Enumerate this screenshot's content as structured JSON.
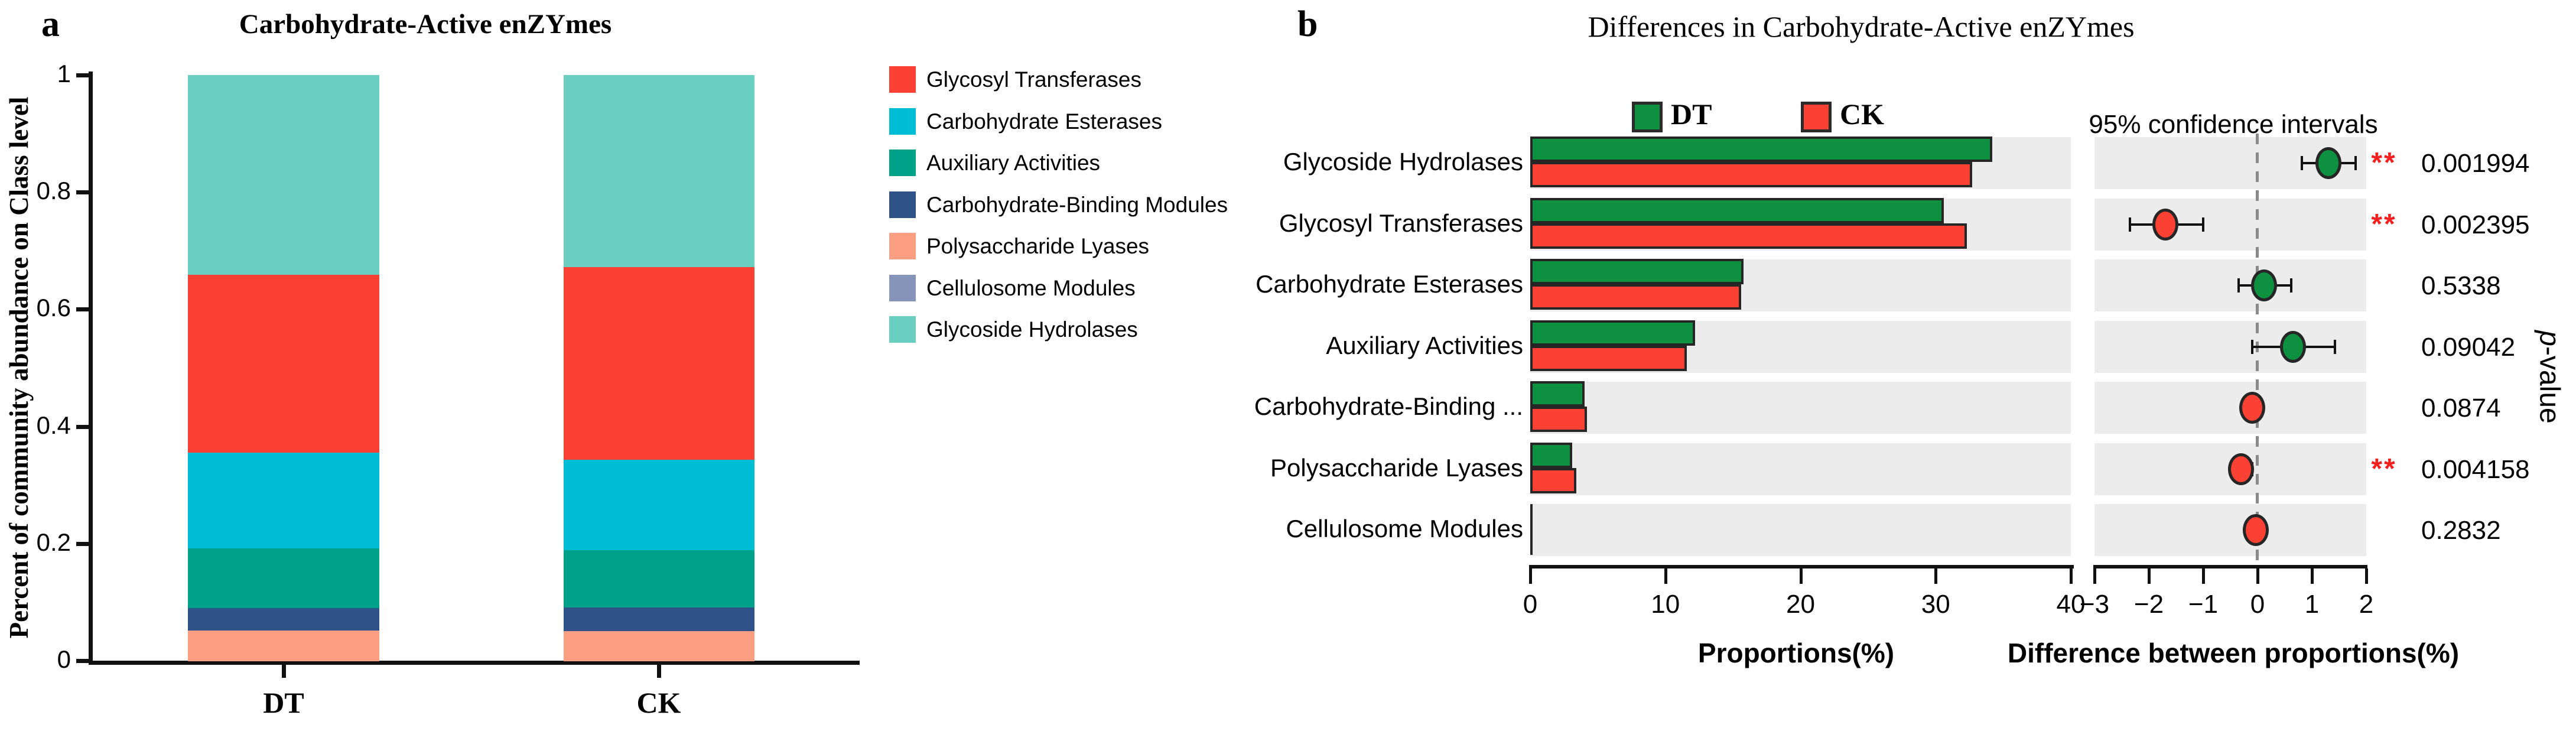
{
  "colors": {
    "glycosyl_transferases": "#FB4133",
    "carbohydrate_esterases": "#00BDD6",
    "auxiliary_activities": "#00A189",
    "carbohydrate_binding_modules": "#2F5289",
    "polysaccharide_lyases": "#FB9E82",
    "cellulosome_modules": "#8694B9",
    "glycoside_hydrolases": "#6ACFC0",
    "dt_green": "#0D9040",
    "ck_red": "#FB4133",
    "band_gray": "#ECECEC",
    "bar_border": "#262626",
    "dashed_line": "#8A8A8A",
    "star_red": "#F71E1E"
  },
  "panel_a": {
    "panel_letter": "a",
    "title": "Carbohydrate-Active enZYmes",
    "y_axis_label": "Percent of community abundance on Class level",
    "y_tick_labels": [
      "0",
      "0.2",
      "0.4",
      "0.6",
      "0.8",
      "1"
    ],
    "x_categories": [
      "DT",
      "CK"
    ],
    "legend_items": [
      {
        "label": "Glycosyl Transferases",
        "color_key": "glycosyl_transferases"
      },
      {
        "label": "Carbohydrate Esterases",
        "color_key": "carbohydrate_esterases"
      },
      {
        "label": "Auxiliary Activities",
        "color_key": "auxiliary_activities"
      },
      {
        "label": "Carbohydrate-Binding Modules",
        "color_key": "carbohydrate_binding_modules"
      },
      {
        "label": "Polysaccharide Lyases",
        "color_key": "polysaccharide_lyases"
      },
      {
        "label": "Cellulosome Modules",
        "color_key": "cellulosome_modules"
      },
      {
        "label": "Glycoside Hydrolases",
        "color_key": "glycoside_hydrolases"
      }
    ]
  },
  "panel_b": {
    "panel_letter": "b",
    "title": "Differences in Carbohydrate-Active enZYmes",
    "legend_items": [
      {
        "label": "DT",
        "color_key": "dt_green"
      },
      {
        "label": "CK",
        "color_key": "ck_red"
      }
    ],
    "ci_header": "95% confidence intervals",
    "prop_axis_title": "Proportions(%)",
    "diff_axis_title": "Difference between proportions(%)",
    "prop_tick_labels": [
      "0",
      "10",
      "20",
      "30",
      "40"
    ],
    "diff_tick_labels": [
      "−3",
      "−2",
      "−1",
      "0",
      "1",
      "2"
    ],
    "pvalue_label_p": "p",
    "pvalue_label_rest": "-value"
  },
  "chart_data": [
    {
      "type": "bar",
      "subtype": "stacked_vertical",
      "title": "Carbohydrate-Active enZYmes",
      "ylabel": "Percent of community abundance on Class level",
      "ylim": [
        0,
        1
      ],
      "yticks": [
        0,
        0.2,
        0.4,
        0.6,
        0.8,
        1
      ],
      "categories": [
        "DT",
        "CK"
      ],
      "series_bottom_to_top": [
        {
          "name": "Polysaccharide Lyases",
          "color_key": "polysaccharide_lyases",
          "values": [
            0.052,
            0.051
          ]
        },
        {
          "name": "Carbohydrate-Binding Modules",
          "color_key": "carbohydrate_binding_modules",
          "values": [
            0.039,
            0.041
          ]
        },
        {
          "name": "Auxiliary Activities",
          "color_key": "auxiliary_activities",
          "values": [
            0.102,
            0.098
          ]
        },
        {
          "name": "Carbohydrate Esterases",
          "color_key": "carbohydrate_esterases",
          "values": [
            0.163,
            0.154
          ]
        },
        {
          "name": "Glycosyl Transferases",
          "color_key": "glycosyl_transferases",
          "values": [
            0.304,
            0.329
          ]
        },
        {
          "name": "Glycoside Hydrolases",
          "color_key": "glycoside_hydrolases",
          "values": [
            0.34,
            0.327
          ]
        },
        {
          "name": "Cellulosome Modules",
          "color_key": "cellulosome_modules",
          "values": [
            0.0,
            0.0
          ]
        }
      ]
    },
    {
      "type": "bar",
      "subtype": "extended_error_bar",
      "title": "Differences in Carbohydrate-Active enZYmes",
      "groups": [
        {
          "name": "DT",
          "color_key": "dt_green"
        },
        {
          "name": "CK",
          "color_key": "ck_red"
        }
      ],
      "prop_xlim": [
        0,
        40
      ],
      "prop_xticks": [
        0,
        10,
        20,
        30,
        40
      ],
      "diff_xlim": [
        -3,
        2
      ],
      "diff_xticks": [
        -3,
        -2,
        -1,
        0,
        1,
        2
      ],
      "rows": [
        {
          "category": "Glycoside Hydrolases",
          "dt": 34.2,
          "ck": 32.7,
          "diff": 1.3,
          "ci": [
            0.82,
            1.8
          ],
          "dot_color_key": "dt_green",
          "p_value": "0.001994",
          "significance": "**"
        },
        {
          "category": "Glycosyl Transferases",
          "dt": 30.6,
          "ck": 32.3,
          "diff": -1.7,
          "ci": [
            -2.35,
            -1.0
          ],
          "dot_color_key": "ck_red",
          "p_value": "0.002395",
          "significance": "**"
        },
        {
          "category": "Carbohydrate Esterases",
          "dt": 15.8,
          "ck": 15.6,
          "diff": 0.12,
          "ci": [
            -0.35,
            0.62
          ],
          "dot_color_key": "dt_green",
          "p_value": "0.5338",
          "significance": ""
        },
        {
          "category": "Auxiliary Activities",
          "dt": 12.2,
          "ck": 11.6,
          "diff": 0.65,
          "ci": [
            -0.1,
            1.42
          ],
          "dot_color_key": "dt_green",
          "p_value": "0.09042",
          "significance": ""
        },
        {
          "category": "Carbohydrate-Binding ...",
          "dt": 4.0,
          "ck": 4.2,
          "diff": -0.1,
          "ci": [
            -0.28,
            0.08
          ],
          "dot_color_key": "ck_red",
          "p_value": "0.0874",
          "significance": ""
        },
        {
          "category": "Polysaccharide Lyases",
          "dt": 3.1,
          "ck": 3.4,
          "diff": -0.3,
          "ci": [
            -0.5,
            -0.1
          ],
          "dot_color_key": "ck_red",
          "p_value": "0.004158",
          "significance": "**"
        },
        {
          "category": "Cellulosome Modules",
          "dt": 0.05,
          "ck": 0.05,
          "diff": -0.03,
          "ci": [
            -0.1,
            0.05
          ],
          "dot_color_key": "ck_red",
          "p_value": "0.2832",
          "significance": ""
        }
      ]
    }
  ]
}
